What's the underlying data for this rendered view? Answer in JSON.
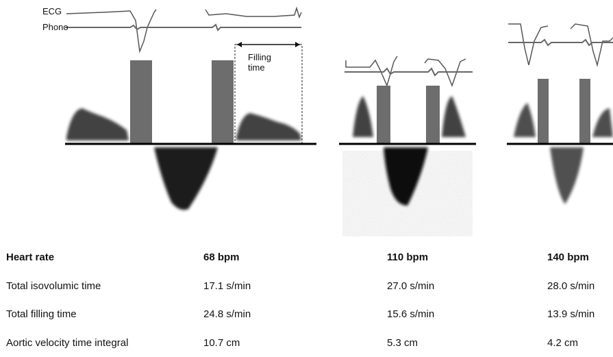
{
  "figure": {
    "ecg_label": "ECG",
    "phono_label": "Phono",
    "filling_time_label": "Filling time"
  },
  "table": {
    "rows": [
      [
        "Heart rate",
        "68 bpm",
        "110 bpm",
        "140 bpm"
      ],
      [
        "Total isovolumic time",
        "17.1 s/min",
        "27.0 s/min",
        "28.0 s/min"
      ],
      [
        "Total filling time",
        "24.8 s/min",
        "15.6 s/min",
        "13.9 s/min"
      ],
      [
        "Aortic velocity time integral",
        "10.7 cm",
        "5.3 cm",
        "4.2 cm"
      ]
    ]
  }
}
